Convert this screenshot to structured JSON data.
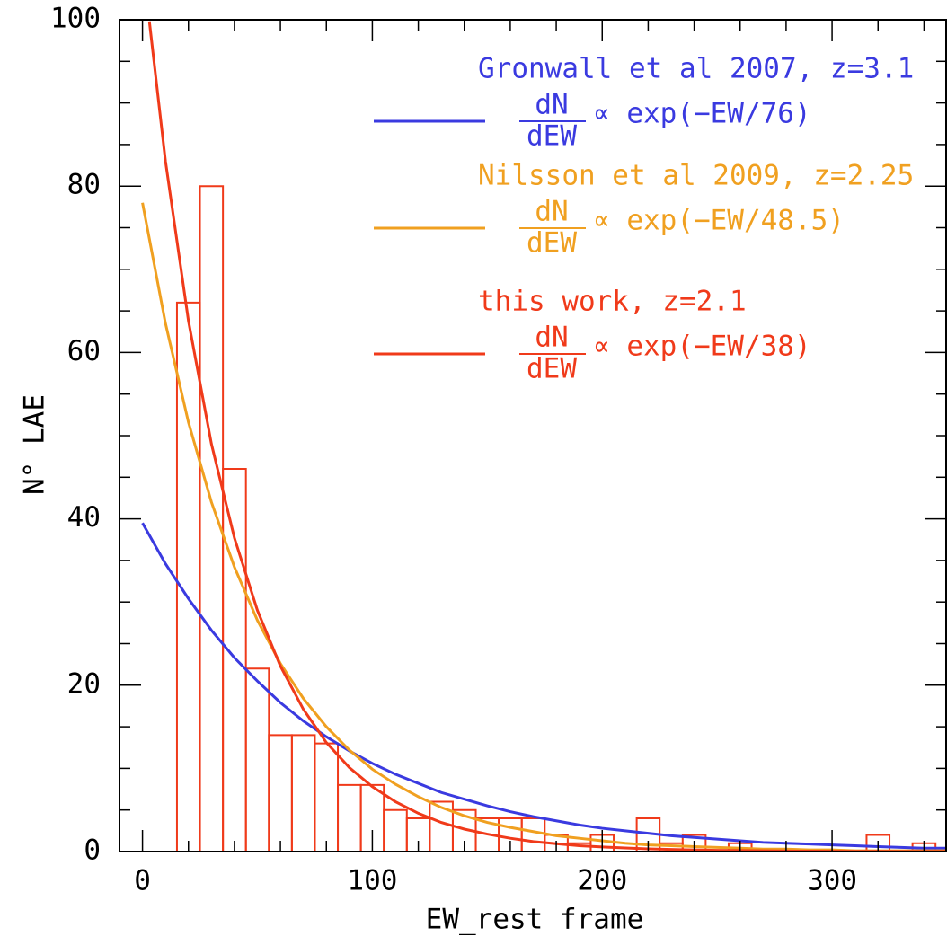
{
  "chart_data": {
    "type": "histogram",
    "xlabel": "EW_rest frame",
    "ylabel": "N° LAE",
    "bins": [
      15,
      25,
      35,
      45,
      55,
      65,
      75,
      85,
      95,
      105,
      115,
      125,
      135,
      145,
      155,
      165,
      175,
      185,
      195,
      205,
      215,
      225,
      235,
      245,
      255,
      265,
      275,
      285,
      295,
      305,
      315,
      325,
      335,
      345
    ],
    "values": [
      66,
      80,
      46,
      22,
      14,
      14,
      13,
      8,
      8,
      5,
      4,
      6,
      5,
      4,
      4,
      4,
      2,
      1,
      2,
      0,
      4,
      1,
      2,
      0,
      1,
      0,
      0,
      0,
      0,
      0,
      2,
      0,
      1
    ],
    "color": "#f03a1a",
    "xlim": [
      -10,
      350
    ],
    "ylim": [
      0,
      100
    ],
    "xticks": [
      0,
      100,
      200,
      300
    ],
    "yticks": [
      0,
      20,
      40,
      60,
      80,
      100
    ],
    "xminorticks": [
      20,
      40,
      60,
      80,
      120,
      140,
      160,
      180,
      220,
      240,
      260,
      280,
      320,
      340
    ],
    "yminorticks": [
      5,
      10,
      15,
      25,
      30,
      35,
      45,
      50,
      55,
      65,
      70,
      75,
      85,
      90,
      95
    ],
    "series": [
      {
        "name": "Gronwall et al 2007, z=3.1",
        "type": "line",
        "color": "#3a3ae0",
        "formula": {
          "numerator": "dN",
          "denominator": "dEW",
          "text": "∝ exp(−EW/76)"
        },
        "x": [
          0,
          10,
          20,
          30,
          40,
          50,
          60,
          70,
          80,
          90,
          100,
          110,
          120,
          130,
          140,
          150,
          160,
          170,
          180,
          190,
          200,
          210,
          220,
          230,
          240,
          250,
          260,
          270,
          280,
          290,
          300,
          310,
          320,
          330,
          340,
          350
        ],
        "values": [
          39.5,
          34.6,
          30.4,
          26.6,
          23.3,
          20.5,
          17.9,
          15.7,
          13.8,
          12.1,
          10.6,
          9.3,
          8.2,
          7.1,
          6.3,
          5.5,
          4.8,
          4.2,
          3.7,
          3.2,
          2.8,
          2.5,
          2.2,
          1.9,
          1.7,
          1.5,
          1.3,
          1.1,
          1.0,
          0.9,
          0.8,
          0.7,
          0.6,
          0.5,
          0.4,
          0.4
        ]
      },
      {
        "name": "Nilsson et al 2009, z=2.25",
        "type": "line",
        "color": "#f0a020",
        "formula": {
          "numerator": "dN",
          "denominator": "dEW",
          "text": "∝ exp(−EW/48.5)"
        },
        "x": [
          0,
          10,
          20,
          30,
          40,
          50,
          60,
          70,
          80,
          90,
          100,
          110,
          120,
          130,
          140,
          150,
          160,
          170,
          180,
          190,
          200,
          210,
          220,
          230,
          240,
          250,
          260,
          270,
          280,
          290,
          300,
          310,
          320,
          330,
          340,
          350
        ],
        "values": [
          78,
          63.5,
          51.6,
          42.0,
          34.2,
          27.8,
          22.6,
          18.4,
          15.0,
          12.2,
          9.9,
          8.1,
          6.6,
          5.3,
          4.3,
          3.5,
          2.9,
          2.4,
          1.9,
          1.6,
          1.3,
          1.0,
          0.8,
          0.7,
          0.6,
          0.5,
          0.4,
          0.3,
          0.3,
          0.2,
          0.2,
          0.1,
          0.1,
          0.1,
          0.1,
          0.1
        ]
      },
      {
        "name": "this work, z=2.1",
        "type": "line",
        "color": "#f03a1a",
        "formula": {
          "numerator": "dN",
          "denominator": "dEW",
          "text": "∝ exp(−EW/38)"
        },
        "x": [
          3,
          10,
          20,
          30,
          40,
          50,
          60,
          70,
          80,
          90,
          100,
          110,
          120,
          130,
          140,
          150,
          160,
          170,
          180,
          190,
          200,
          210,
          220,
          230,
          240,
          250,
          260,
          270,
          280,
          290,
          300,
          310,
          320,
          330,
          340,
          350
        ],
        "values": [
          99.8,
          83.0,
          63.8,
          49.0,
          37.7,
          29.0,
          22.3,
          17.1,
          13.1,
          10.1,
          7.8,
          6.0,
          4.6,
          3.5,
          2.7,
          2.1,
          1.6,
          1.2,
          0.95,
          0.7,
          0.56,
          0.43,
          0.33,
          0.25,
          0.2,
          0.15,
          0.12,
          0.09,
          0.07,
          0.05,
          0.04,
          0.03,
          0.03,
          0.02,
          0.02,
          0.01
        ]
      }
    ]
  }
}
